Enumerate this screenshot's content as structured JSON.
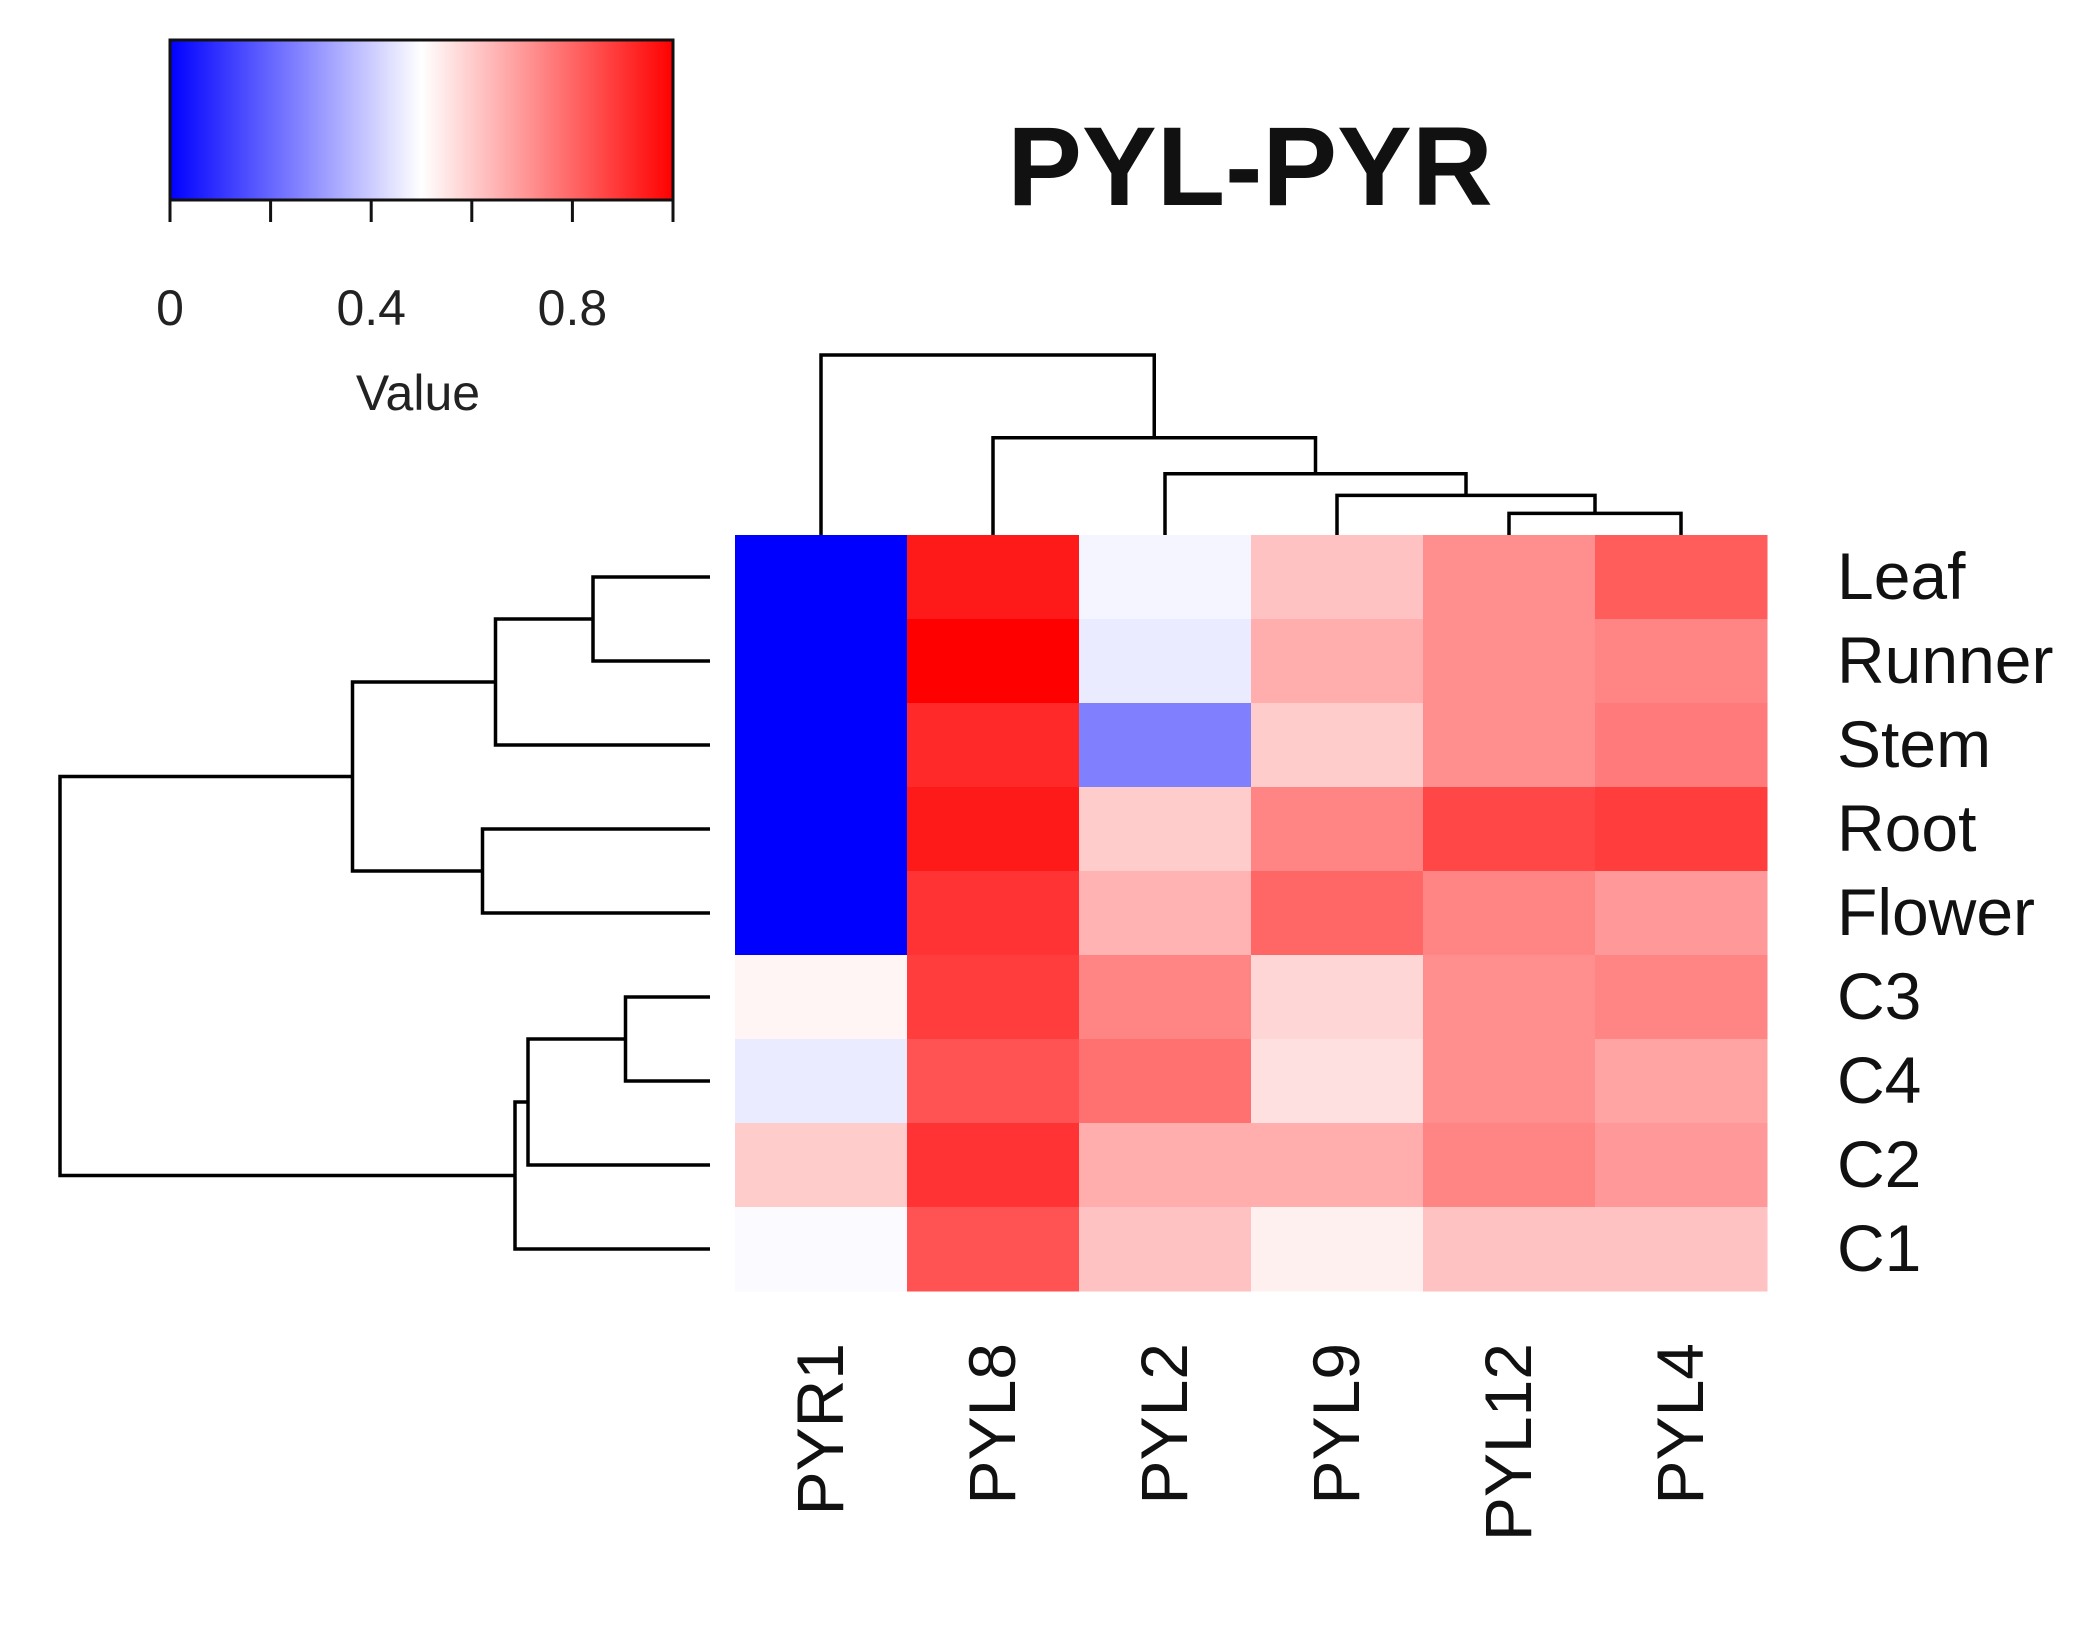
{
  "chart_data": {
    "type": "heatmap",
    "title": "PYL-PYR",
    "rows": [
      "Leaf",
      "Runner",
      "Stem",
      "Root",
      "Flower",
      "C3",
      "C4",
      "C2",
      "C1"
    ],
    "columns": [
      "PYR1",
      "PYL8",
      "PYL2",
      "PYL9",
      "PYL12",
      "PYL4"
    ],
    "values": [
      [
        0.0,
        0.95,
        0.48,
        0.62,
        0.72,
        0.82
      ],
      [
        0.0,
        1.0,
        0.46,
        0.66,
        0.72,
        0.74
      ],
      [
        0.0,
        0.92,
        0.25,
        0.6,
        0.72,
        0.76
      ],
      [
        0.0,
        0.95,
        0.6,
        0.74,
        0.86,
        0.88
      ],
      [
        0.0,
        0.9,
        0.65,
        0.8,
        0.74,
        0.7
      ],
      [
        0.52,
        0.88,
        0.74,
        0.58,
        0.72,
        0.74
      ],
      [
        0.46,
        0.84,
        0.78,
        0.56,
        0.72,
        0.68
      ],
      [
        0.6,
        0.9,
        0.66,
        0.66,
        0.74,
        0.7
      ],
      [
        0.49,
        0.84,
        0.62,
        0.53,
        0.62,
        0.62
      ]
    ],
    "color_scale": {
      "label": "Value",
      "range": [
        0,
        1
      ],
      "ticks": [
        0,
        0.2,
        0.4,
        0.6,
        0.8,
        1.0
      ],
      "tick_labels": [
        "0",
        "",
        "0.4",
        "",
        "0.8",
        ""
      ],
      "low_color": "#0000ff",
      "mid_color": "#ffffff",
      "high_color": "#ff0000",
      "mid_value": 0.5
    },
    "row_dendrogram": {
      "merges": [
        [
          0,
          1
        ],
        [
          -1,
          2
        ],
        [
          3,
          4
        ],
        [
          -2,
          -3
        ],
        [
          5,
          6
        ],
        [
          -5,
          7
        ],
        [
          -6,
          8
        ],
        [
          -4,
          -7
        ]
      ],
      "heights": [
        0.18,
        0.33,
        0.35,
        0.55,
        0.13,
        0.28,
        0.3,
        1.0
      ]
    },
    "col_dendrogram": {
      "merges": [
        [
          4,
          5
        ],
        [
          3,
          -1
        ],
        [
          2,
          -2
        ],
        [
          1,
          -3
        ],
        [
          0,
          -4
        ]
      ],
      "heights": [
        0.12,
        0.22,
        0.34,
        0.54,
        1.0
      ]
    }
  }
}
